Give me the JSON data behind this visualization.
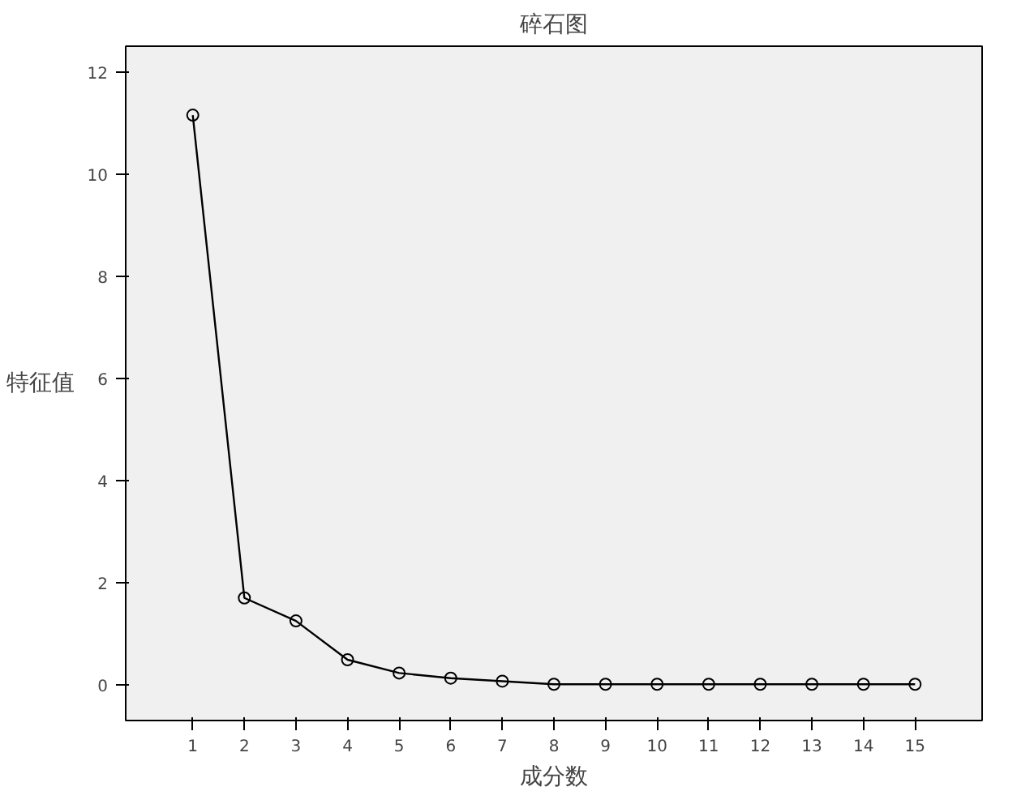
{
  "chart_data": {
    "type": "line",
    "title": "碎石图",
    "xlabel": "成分数",
    "ylabel": "特征值",
    "x": [
      1,
      2,
      3,
      4,
      5,
      6,
      7,
      8,
      9,
      10,
      11,
      12,
      13,
      14,
      15
    ],
    "xlim": [
      -0.3,
      16.3
    ],
    "xticks": [
      1,
      2,
      3,
      4,
      5,
      6,
      7,
      8,
      9,
      10,
      11,
      12,
      13,
      14,
      15
    ],
    "series": [
      {
        "color": "#000000",
        "values": [
          11.15,
          1.7,
          1.25,
          0.49,
          0.23,
          0.13,
          0.07,
          0.01,
          0.01,
          0.01,
          0.01,
          0.01,
          0.01,
          0.01,
          0.01
        ]
      }
    ],
    "ylim": [
      -0.7,
      12.5
    ],
    "yticks": [
      0,
      2,
      4,
      6,
      8,
      10,
      12
    ],
    "grid": false,
    "marker": "circle",
    "line_style": "solid"
  }
}
